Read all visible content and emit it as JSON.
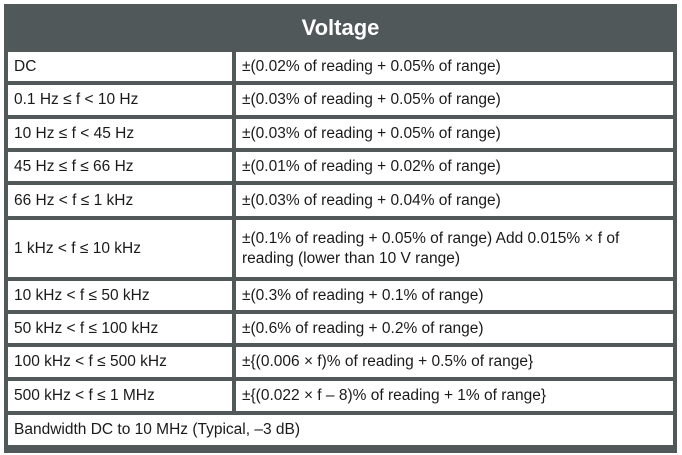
{
  "title": "Voltage",
  "rows": [
    {
      "range": "DC",
      "accuracy": "±(0.02% of reading + 0.05% of range)"
    },
    {
      "range": "0.1 Hz ≤ f < 10 Hz",
      "accuracy": "±(0.03% of reading + 0.05% of range)"
    },
    {
      "range": "10 Hz ≤ f < 45 Hz",
      "accuracy": "±(0.03% of reading + 0.05% of range)"
    },
    {
      "range": "45 Hz ≤ f ≤ 66 Hz",
      "accuracy": "±(0.01% of reading + 0.02% of range)"
    },
    {
      "range": "66 Hz < f ≤ 1 kHz",
      "accuracy": "±(0.03% of reading + 0.04% of range)"
    },
    {
      "range": "1 kHz < f ≤ 10 kHz",
      "accuracy": "±(0.1% of reading + 0.05% of range) Add 0.015% × f of reading (lower than 10 V range)"
    },
    {
      "range": "10 kHz < f ≤ 50 kHz",
      "accuracy": "±(0.3% of reading + 0.1% of range)"
    },
    {
      "range": "50 kHz < f ≤ 100 kHz",
      "accuracy": "±(0.6% of reading + 0.2% of range)"
    },
    {
      "range": "100 kHz < f ≤ 500 kHz",
      "accuracy": "±{(0.006 × f)% of reading + 0.5% of range}"
    },
    {
      "range": "500 kHz < f ≤ 1 MHz",
      "accuracy": "±{(0.022 × f – 8)% of reading + 1% of range}"
    }
  ],
  "footer": "Bandwidth DC to 10 MHz (Typical, –3 dB)",
  "colors": {
    "border": "#50585a",
    "header_text": "#ffffff"
  }
}
